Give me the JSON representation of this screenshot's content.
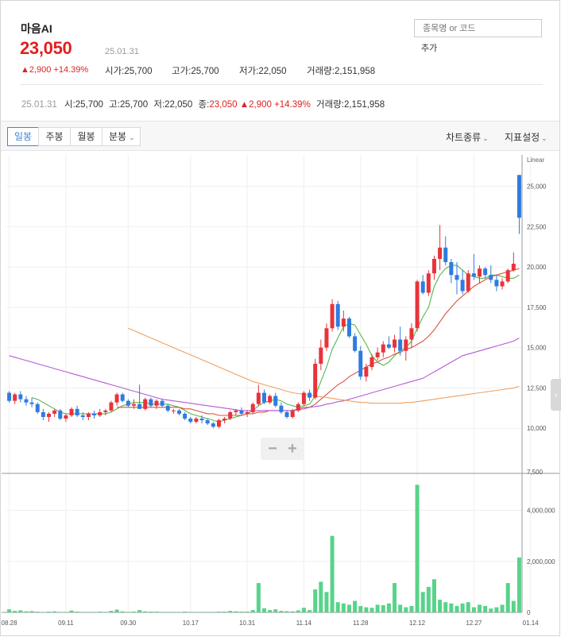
{
  "stock": {
    "name": "마음AI",
    "price": "23,050",
    "date": "25.01.31",
    "change": "▲2,900 +14.39%",
    "open_label": "시가",
    "open": "25,700",
    "high_label": "고가",
    "high": "25,700",
    "low_label": "저가",
    "low": "22,050",
    "volume_label": "거래량",
    "volume": "2,151,958"
  },
  "search": {
    "placeholder": "종목명 or 코드",
    "add_label": "추가"
  },
  "summary": {
    "date": "25.01.31",
    "o_label": "시",
    "o": "25,700",
    "h_label": "고",
    "h": "25,700",
    "l_label": "저",
    "l": "22,050",
    "c_label": "종",
    "c": "23,050",
    "change": "▲2,900 +14.39%",
    "v_label": "거래량",
    "v": "2,151,958"
  },
  "toolbar": {
    "tabs": [
      "일봉",
      "주봉",
      "월봉",
      "분봉"
    ],
    "active_tab": "일봉",
    "chart_type": "차트종류",
    "indicator": "지표설정"
  },
  "colors": {
    "up": "#e8333b",
    "down": "#2f7be0",
    "volume": "#58d38a",
    "ma5": "#55b84a",
    "ma20": "#d9533f",
    "ma60": "#b55ad9",
    "ma120": "#f0a060",
    "accent": "#3e86d9"
  },
  "icons": {
    "dropdown": "chevron-down-icon",
    "side_handle": "chevron-left-icon",
    "zoom_out": "minus-icon",
    "zoom_in": "plus-icon"
  },
  "chart_data": {
    "type": "candlestick",
    "scale": "Linear",
    "price_ticks": [
      "25,000",
      "22,500",
      "20,000",
      "17,500",
      "15,000",
      "12,500",
      "10,000",
      "7,500"
    ],
    "price_tick_values": [
      25000,
      22500,
      20000,
      17500,
      15000,
      12500,
      10000,
      7500
    ],
    "volume_ticks": [
      "4,000,000",
      "2,000,000",
      "0"
    ],
    "volume_tick_values": [
      4000000,
      2000000,
      0
    ],
    "x_labels": [
      "08.28",
      "09.11",
      "09.30",
      "10.17",
      "10.31",
      "11.14",
      "11.28",
      "12.12",
      "12.27",
      "01.14"
    ],
    "x_label_index": [
      0,
      10,
      21,
      32,
      42,
      52,
      62,
      72,
      82,
      92
    ],
    "ylim": [
      7500,
      27000
    ],
    "candles": [
      [
        12200,
        12300,
        11600,
        11700
      ],
      [
        11700,
        12200,
        11500,
        12100
      ],
      [
        12100,
        12300,
        11600,
        11800
      ],
      [
        11800,
        12000,
        11400,
        11600
      ],
      [
        11600,
        11900,
        11300,
        11500
      ],
      [
        11500,
        11600,
        10900,
        11000
      ],
      [
        11000,
        11200,
        10500,
        10700
      ],
      [
        10700,
        11000,
        10400,
        10900
      ],
      [
        10900,
        11200,
        10700,
        11100
      ],
      [
        11100,
        11200,
        10500,
        10600
      ],
      [
        10600,
        10900,
        10400,
        10800
      ],
      [
        10800,
        11300,
        10700,
        11200
      ],
      [
        11200,
        11400,
        10700,
        10800
      ],
      [
        10800,
        11000,
        10500,
        10700
      ],
      [
        10700,
        11000,
        10500,
        10900
      ],
      [
        10900,
        11100,
        10600,
        10800
      ],
      [
        10800,
        11200,
        10700,
        11000
      ],
      [
        11000,
        11200,
        10800,
        11100
      ],
      [
        11100,
        11700,
        11000,
        11600
      ],
      [
        11600,
        12200,
        11400,
        12100
      ],
      [
        12100,
        12200,
        11600,
        11700
      ],
      [
        11700,
        11800,
        11300,
        11400
      ],
      [
        11400,
        11800,
        11200,
        11500
      ],
      [
        11500,
        12700,
        11300,
        11200
      ],
      [
        11200,
        11900,
        11100,
        11800
      ],
      [
        11800,
        11900,
        11300,
        11400
      ],
      [
        11400,
        11800,
        11200,
        11700
      ],
      [
        11700,
        11800,
        11300,
        11400
      ],
      [
        11400,
        11500,
        11000,
        11100
      ],
      [
        11100,
        11200,
        10900,
        11100
      ],
      [
        11100,
        11200,
        10800,
        10900
      ],
      [
        10900,
        11000,
        10500,
        10600
      ],
      [
        10600,
        10700,
        10300,
        10400
      ],
      [
        10400,
        10700,
        10300,
        10600
      ],
      [
        10600,
        10800,
        10300,
        10500
      ],
      [
        10500,
        10600,
        10200,
        10300
      ],
      [
        10300,
        10400,
        10000,
        10100
      ],
      [
        10100,
        10600,
        10000,
        10500
      ],
      [
        10500,
        10700,
        10300,
        10600
      ],
      [
        10600,
        11100,
        10500,
        11000
      ],
      [
        11000,
        11200,
        10800,
        11100
      ],
      [
        11100,
        11300,
        10800,
        10900
      ],
      [
        10900,
        11100,
        10700,
        11000
      ],
      [
        11000,
        11600,
        10900,
        11500
      ],
      [
        11500,
        12700,
        11400,
        12200
      ],
      [
        12200,
        12400,
        11500,
        11600
      ],
      [
        11600,
        12100,
        11500,
        12000
      ],
      [
        12000,
        12200,
        11300,
        11400
      ],
      [
        11400,
        11600,
        10900,
        11000
      ],
      [
        11000,
        11100,
        10600,
        10700
      ],
      [
        10700,
        11200,
        10600,
        11100
      ],
      [
        11100,
        11600,
        11000,
        11500
      ],
      [
        11500,
        12300,
        11400,
        12200
      ],
      [
        12200,
        12400,
        11700,
        11900
      ],
      [
        11900,
        14300,
        11800,
        14000
      ],
      [
        14000,
        15500,
        13600,
        15000
      ],
      [
        15000,
        16500,
        14800,
        16200
      ],
      [
        16200,
        18000,
        16000,
        17700
      ],
      [
        17700,
        17900,
        16100,
        16300
      ],
      [
        16300,
        17300,
        16000,
        16800
      ],
      [
        16800,
        16900,
        15600,
        15700
      ],
      [
        15700,
        15900,
        14700,
        14800
      ],
      [
        14800,
        15100,
        13000,
        13200
      ],
      [
        13200,
        14000,
        12900,
        13800
      ],
      [
        13800,
        14600,
        13600,
        14400
      ],
      [
        14400,
        15000,
        14200,
        14700
      ],
      [
        14700,
        15400,
        14400,
        15200
      ],
      [
        15200,
        15700,
        14900,
        15000
      ],
      [
        15000,
        15800,
        14700,
        15500
      ],
      [
        15500,
        16300,
        14500,
        14800
      ],
      [
        14800,
        15700,
        14200,
        15500
      ],
      [
        15500,
        16500,
        15000,
        16200
      ],
      [
        16200,
        19200,
        16000,
        19100
      ],
      [
        19100,
        19500,
        18300,
        18400
      ],
      [
        18400,
        19800,
        18200,
        19600
      ],
      [
        19600,
        20700,
        19200,
        20500
      ],
      [
        20500,
        22600,
        19800,
        21200
      ],
      [
        21200,
        21900,
        20100,
        20300
      ],
      [
        20300,
        20500,
        19000,
        19500
      ],
      [
        19500,
        20300,
        18300,
        19200
      ],
      [
        19200,
        19800,
        18300,
        18500
      ],
      [
        18500,
        19800,
        18400,
        19600
      ],
      [
        19600,
        20800,
        19200,
        19400
      ],
      [
        19400,
        20100,
        19000,
        19900
      ],
      [
        19900,
        20000,
        19300,
        19500
      ],
      [
        19500,
        20100,
        19000,
        19200
      ],
      [
        19200,
        19500,
        18500,
        18800
      ],
      [
        18800,
        19300,
        18600,
        19100
      ],
      [
        19100,
        19900,
        19000,
        19800
      ],
      [
        19800,
        20900,
        19700,
        20200
      ],
      [
        25700,
        25700,
        22050,
        23050
      ]
    ],
    "volume": [
      120000,
      60000,
      80000,
      40000,
      50000,
      30000,
      20000,
      30000,
      40000,
      20000,
      20000,
      70000,
      30000,
      20000,
      20000,
      20000,
      30000,
      20000,
      60000,
      110000,
      40000,
      20000,
      30000,
      90000,
      40000,
      30000,
      30000,
      20000,
      20000,
      20000,
      20000,
      30000,
      20000,
      20000,
      20000,
      20000,
      20000,
      30000,
      30000,
      60000,
      40000,
      30000,
      30000,
      90000,
      1150000,
      160000,
      90000,
      120000,
      60000,
      50000,
      40000,
      80000,
      180000,
      90000,
      900000,
      1200000,
      800000,
      3000000,
      400000,
      350000,
      300000,
      450000,
      250000,
      200000,
      180000,
      300000,
      280000,
      350000,
      1150000,
      300000,
      200000,
      250000,
      5000000,
      800000,
      1000000,
      1300000,
      500000,
      400000,
      350000,
      250000,
      350000,
      400000,
      200000,
      300000,
      250000,
      150000,
      200000,
      300000,
      1150000,
      450000,
      2151958
    ],
    "ma": {
      "ma5": [
        null,
        null,
        null,
        null,
        11900,
        11800,
        11600,
        11400,
        11200,
        11000,
        10900,
        10900,
        10900,
        10900,
        10900,
        10900,
        10900,
        10900,
        11000,
        11200,
        11400,
        11500,
        11600,
        11600,
        11600,
        11500,
        11500,
        11500,
        11500,
        11400,
        11300,
        11100,
        10900,
        10800,
        10700,
        10600,
        10500,
        10400,
        10500,
        10600,
        10700,
        10800,
        10900,
        11100,
        11400,
        11600,
        11700,
        11800,
        11700,
        11500,
        11400,
        11300,
        11400,
        11500,
        12000,
        12900,
        13800,
        14900,
        15600,
        16300,
        16500,
        16400,
        15800,
        15200,
        14500,
        14100,
        13900,
        14100,
        14500,
        14800,
        15000,
        15400,
        16200,
        16900,
        17500,
        18800,
        19500,
        19900,
        20100,
        20100,
        19800,
        19500,
        19400,
        19300,
        19300,
        19500,
        19500,
        19400,
        19300,
        19300,
        19500
      ],
      "ma20": [
        null,
        null,
        null,
        null,
        null,
        null,
        null,
        null,
        null,
        null,
        null,
        null,
        null,
        null,
        null,
        null,
        null,
        null,
        null,
        11300,
        11300,
        11300,
        11300,
        11300,
        11300,
        11300,
        11300,
        11300,
        11300,
        11300,
        11300,
        11200,
        11200,
        11100,
        11000,
        10900,
        10900,
        10800,
        10800,
        10800,
        10800,
        10800,
        10900,
        10900,
        11000,
        11000,
        11100,
        11100,
        11100,
        11100,
        11100,
        11200,
        11300,
        11300,
        11500,
        11800,
        12100,
        12400,
        12700,
        12900,
        13200,
        13400,
        13600,
        13800,
        14000,
        14100,
        14300,
        14400,
        14600,
        14700,
        14900,
        15000,
        15200,
        15400,
        15700,
        16100,
        16600,
        17100,
        17500,
        17900,
        18200,
        18500,
        18800,
        19000,
        19200,
        19400,
        19500,
        19600,
        19700,
        19800,
        19900
      ],
      "ma60": [
        14500,
        14400,
        14300,
        14200,
        14100,
        14000,
        13900,
        13800,
        13700,
        13600,
        13500,
        13400,
        13300,
        13200,
        13100,
        13000,
        12900,
        12800,
        12700,
        12600,
        12500,
        12400,
        12300,
        12200,
        12100,
        12000,
        11900,
        11800,
        11750,
        11700,
        11650,
        11600,
        11550,
        11500,
        11450,
        11400,
        11350,
        11300,
        11250,
        11200,
        11150,
        11100,
        11100,
        11100,
        11100,
        11100,
        11100,
        11100,
        11100,
        11100,
        11100,
        11150,
        11200,
        11300,
        11350,
        11400,
        11500,
        11550,
        11650,
        11700,
        11800,
        11900,
        12000,
        12100,
        12200,
        12300,
        12400,
        12500,
        12600,
        12700,
        12800,
        12900,
        13000,
        13100,
        13300,
        13500,
        13700,
        13900,
        14100,
        14300,
        14500,
        14600,
        14700,
        14800,
        14900,
        15000,
        15100,
        15200,
        15300,
        15400,
        15600
      ],
      "ma120": [
        null,
        null,
        null,
        null,
        null,
        null,
        null,
        null,
        null,
        null,
        null,
        null,
        null,
        null,
        null,
        null,
        null,
        null,
        null,
        null,
        null,
        16200,
        16050,
        15900,
        15750,
        15600,
        15450,
        15300,
        15150,
        15000,
        14850,
        14700,
        14550,
        14400,
        14250,
        14100,
        13950,
        13800,
        13650,
        13500,
        13350,
        13200,
        13050,
        12900,
        12800,
        12700,
        12600,
        12500,
        12400,
        12300,
        12200,
        12150,
        12100,
        12050,
        12000,
        11950,
        11900,
        11850,
        11800,
        11750,
        11700,
        11650,
        11600,
        11600,
        11550,
        11550,
        11550,
        11550,
        11550,
        11550,
        11600,
        11600,
        11650,
        11700,
        11750,
        11800,
        11850,
        11900,
        11950,
        12000,
        12050,
        12100,
        12150,
        12200,
        12250,
        12300,
        12350,
        12400,
        12450,
        12500,
        12600
      ]
    }
  }
}
